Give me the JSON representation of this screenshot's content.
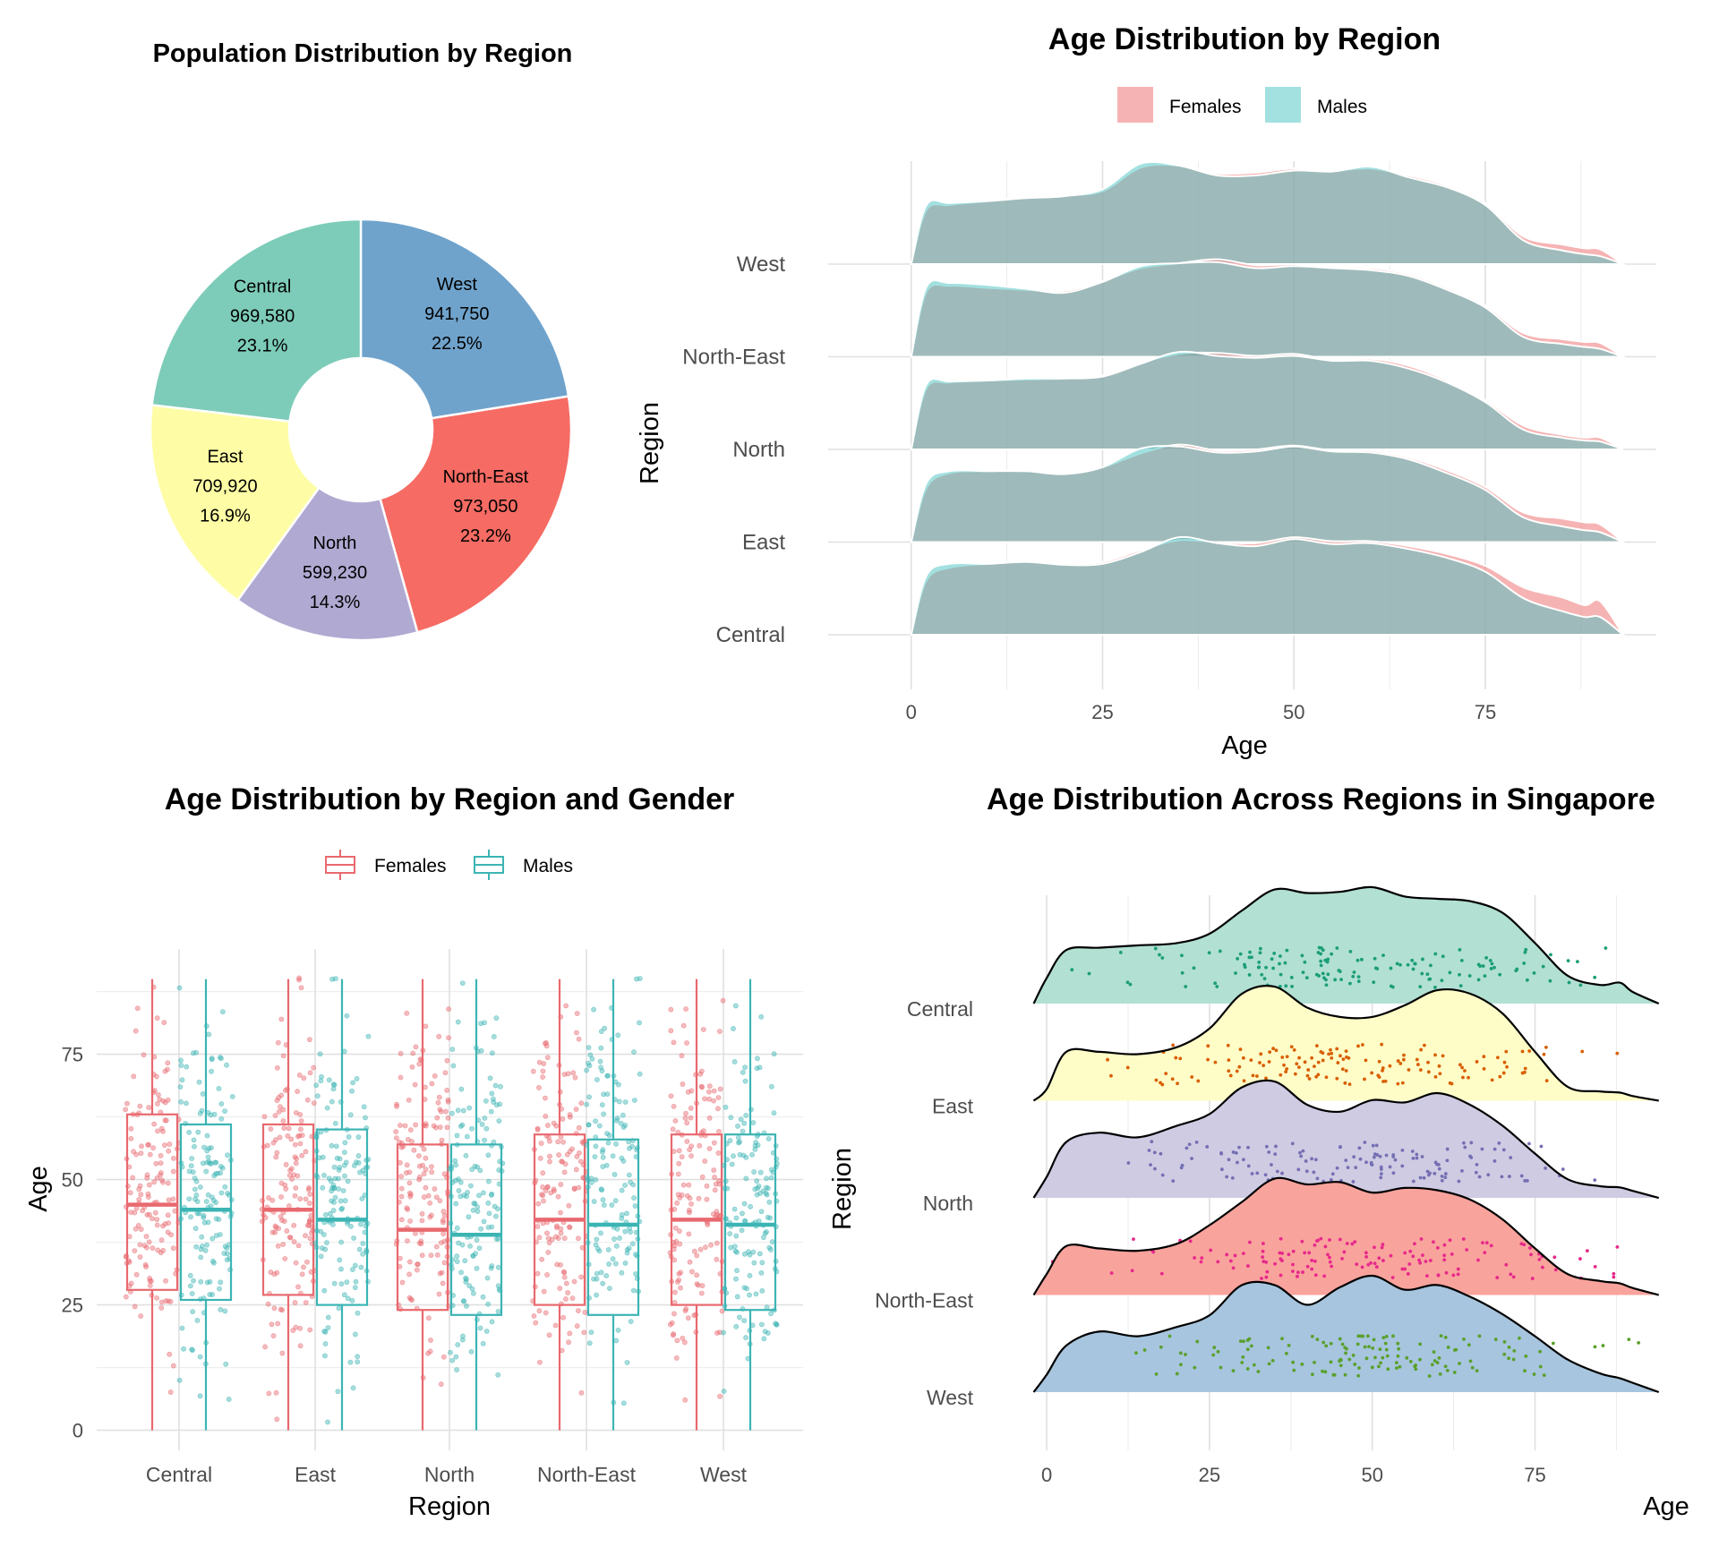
{
  "chart_data": [
    {
      "type": "pie",
      "title": "Population Distribution by Region",
      "slices": [
        {
          "label": "West",
          "value": 941750,
          "value_text": "941,750",
          "pct_text": "22.5%",
          "color": "#6fa3cc"
        },
        {
          "label": "North-East",
          "value": 973050,
          "value_text": "973,050",
          "pct_text": "23.2%",
          "color": "#f66b63"
        },
        {
          "label": "North",
          "value": 599230,
          "value_text": "599,230",
          "pct_text": "14.3%",
          "color": "#b0aad2"
        },
        {
          "label": "East",
          "value": 709920,
          "value_text": "709,920",
          "pct_text": "16.9%",
          "color": "#fefda5"
        },
        {
          "label": "Central",
          "value": 969580,
          "value_text": "969,580",
          "pct_text": "23.1%",
          "color": "#7dccb9"
        }
      ],
      "donut": true
    },
    {
      "type": "area",
      "title": "Age Distribution by Region",
      "subtype": "ridgeline-density",
      "xlabel": "Age",
      "ylabel": "Region",
      "x_ticks": [
        0,
        25,
        50,
        75
      ],
      "xlim": [
        -5,
        95
      ],
      "categories": [
        "Central",
        "East",
        "North",
        "North-East",
        "West"
      ],
      "legend": {
        "position": "top",
        "items": [
          {
            "name": "Females",
            "color": "#f08080"
          },
          {
            "name": "Males",
            "color": "#48c1c1"
          }
        ]
      },
      "grid": true,
      "x": [
        0,
        2,
        5,
        10,
        15,
        20,
        25,
        30,
        35,
        40,
        45,
        50,
        55,
        60,
        65,
        70,
        75,
        80,
        85,
        88,
        90,
        93
      ],
      "series": [
        {
          "category": "Central",
          "name": "Females",
          "values": [
            0,
            0.55,
            0.68,
            0.72,
            0.74,
            0.72,
            0.74,
            0.86,
            0.96,
            0.94,
            0.93,
            0.99,
            0.95,
            0.95,
            0.9,
            0.82,
            0.7,
            0.48,
            0.38,
            0.3,
            0.34,
            0
          ]
        },
        {
          "category": "Central",
          "name": "Males",
          "values": [
            0,
            0.6,
            0.72,
            0.72,
            0.74,
            0.71,
            0.72,
            0.84,
            0.99,
            0.93,
            0.9,
            0.97,
            0.92,
            0.93,
            0.87,
            0.78,
            0.64,
            0.37,
            0.24,
            0.18,
            0.18,
            0
          ]
        },
        {
          "category": "East",
          "name": "Females",
          "values": [
            0,
            0.55,
            0.7,
            0.72,
            0.72,
            0.7,
            0.76,
            0.9,
            0.99,
            0.93,
            0.94,
            0.98,
            0.93,
            0.93,
            0.86,
            0.73,
            0.56,
            0.3,
            0.24,
            0.2,
            0.18,
            0
          ]
        },
        {
          "category": "East",
          "name": "Males",
          "values": [
            0,
            0.6,
            0.72,
            0.72,
            0.72,
            0.69,
            0.76,
            0.95,
            0.97,
            0.91,
            0.92,
            0.97,
            0.92,
            0.91,
            0.84,
            0.7,
            0.53,
            0.25,
            0.16,
            0.12,
            0.1,
            0
          ]
        },
        {
          "category": "North",
          "name": "Females",
          "values": [
            0,
            0.62,
            0.68,
            0.7,
            0.71,
            0.72,
            0.75,
            0.88,
            0.97,
            0.98,
            0.95,
            0.97,
            0.91,
            0.92,
            0.85,
            0.7,
            0.5,
            0.24,
            0.15,
            0.12,
            0.12,
            0
          ]
        },
        {
          "category": "North",
          "name": "Males",
          "values": [
            0,
            0.66,
            0.69,
            0.7,
            0.72,
            0.72,
            0.74,
            0.87,
            0.99,
            0.95,
            0.93,
            0.95,
            0.9,
            0.9,
            0.82,
            0.68,
            0.48,
            0.2,
            0.12,
            0.09,
            0.08,
            0
          ]
        },
        {
          "category": "North-East",
          "name": "Females",
          "values": [
            0,
            0.66,
            0.72,
            0.7,
            0.68,
            0.67,
            0.77,
            0.9,
            0.95,
            0.99,
            0.93,
            0.94,
            0.91,
            0.9,
            0.84,
            0.7,
            0.52,
            0.24,
            0.18,
            0.15,
            0.14,
            0
          ]
        },
        {
          "category": "North-East",
          "name": "Males",
          "values": [
            0,
            0.71,
            0.75,
            0.73,
            0.69,
            0.65,
            0.76,
            0.92,
            0.95,
            0.96,
            0.9,
            0.92,
            0.9,
            0.88,
            0.82,
            0.68,
            0.5,
            0.2,
            0.13,
            0.1,
            0.08,
            0
          ]
        },
        {
          "category": "West",
          "name": "Females",
          "values": [
            0,
            0.55,
            0.6,
            0.64,
            0.68,
            0.7,
            0.74,
            0.98,
            1.0,
            0.92,
            0.93,
            0.97,
            0.95,
            0.97,
            0.9,
            0.8,
            0.62,
            0.28,
            0.2,
            0.16,
            0.15,
            0
          ]
        },
        {
          "category": "West",
          "name": "Males",
          "values": [
            0,
            0.6,
            0.62,
            0.64,
            0.67,
            0.69,
            0.76,
            1.02,
            1.0,
            0.9,
            0.9,
            0.95,
            0.94,
            0.99,
            0.88,
            0.78,
            0.6,
            0.24,
            0.14,
            0.1,
            0.08,
            0
          ]
        }
      ]
    },
    {
      "type": "box",
      "title": "Age Distribution by Region and Gender",
      "xlabel": "Region",
      "ylabel": "Age",
      "categories": [
        "Central",
        "East",
        "North",
        "North-East",
        "West"
      ],
      "y_ticks": [
        0,
        25,
        50,
        75
      ],
      "ylim": [
        -4,
        96
      ],
      "legend": {
        "position": "top",
        "items": [
          {
            "name": "Females",
            "color": "#e8696f"
          },
          {
            "name": "Males",
            "color": "#3cb4b4"
          }
        ]
      },
      "grid": true,
      "series": [
        {
          "name": "Females",
          "boxes": [
            {
              "q1": 28,
              "median": 45,
              "q3": 63,
              "min": 0,
              "max": 90
            },
            {
              "q1": 27,
              "median": 44,
              "q3": 61,
              "min": 0,
              "max": 90
            },
            {
              "q1": 24,
              "median": 40,
              "q3": 57,
              "min": 0,
              "max": 90
            },
            {
              "q1": 25,
              "median": 42,
              "q3": 59,
              "min": 0,
              "max": 90
            },
            {
              "q1": 25,
              "median": 42,
              "q3": 59,
              "min": 0,
              "max": 90
            }
          ]
        },
        {
          "name": "Males",
          "boxes": [
            {
              "q1": 26,
              "median": 44,
              "q3": 61,
              "min": 0,
              "max": 90
            },
            {
              "q1": 25,
              "median": 42,
              "q3": 60,
              "min": 0,
              "max": 90
            },
            {
              "q1": 23,
              "median": 39,
              "q3": 57,
              "min": 0,
              "max": 90
            },
            {
              "q1": 23,
              "median": 41,
              "q3": 58,
              "min": 0,
              "max": 90
            },
            {
              "q1": 24,
              "median": 41,
              "q3": 59,
              "min": 0,
              "max": 90
            }
          ]
        }
      ]
    },
    {
      "type": "area",
      "title": "Age Distribution Across Regions in Singapore",
      "subtype": "ridgeline-density-with-points",
      "xlabel": "Age",
      "ylabel": "Region",
      "x_ticks": [
        0,
        25,
        50,
        75
      ],
      "xlim": [
        -4,
        95
      ],
      "categories": [
        "West",
        "North-East",
        "North",
        "East",
        "Central"
      ],
      "grid": true,
      "x": [
        -2,
        0,
        3,
        8,
        14,
        20,
        25,
        30,
        35,
        40,
        45,
        50,
        55,
        60,
        65,
        70,
        75,
        80,
        85,
        88,
        90,
        94
      ],
      "series": [
        {
          "name": "West",
          "fill": "#a7c5de",
          "point_color": "#5aa02c",
          "values": [
            0,
            0.15,
            0.4,
            0.52,
            0.48,
            0.56,
            0.66,
            0.92,
            0.92,
            0.75,
            0.9,
            1.0,
            0.88,
            0.92,
            0.82,
            0.67,
            0.48,
            0.28,
            0.16,
            0.12,
            0.08,
            0
          ]
        },
        {
          "name": "North-East",
          "fill": "#f9a39d",
          "point_color": "#e7298a",
          "values": [
            0,
            0.18,
            0.42,
            0.4,
            0.38,
            0.44,
            0.6,
            0.8,
            1.0,
            0.95,
            0.97,
            0.88,
            0.92,
            0.9,
            0.82,
            0.65,
            0.4,
            0.18,
            0.12,
            0.1,
            0.06,
            0
          ]
        },
        {
          "name": "North",
          "fill": "#cfcbe3",
          "point_color": "#7570b3",
          "values": [
            0,
            0.18,
            0.48,
            0.56,
            0.52,
            0.62,
            0.72,
            0.95,
            1.0,
            0.8,
            0.74,
            0.84,
            0.82,
            0.9,
            0.8,
            0.62,
            0.38,
            0.16,
            0.1,
            0.09,
            0.06,
            0
          ]
        },
        {
          "name": "East",
          "fill": "#fefdc8",
          "point_color": "#d95f02",
          "values": [
            0,
            0.1,
            0.42,
            0.42,
            0.4,
            0.46,
            0.62,
            0.92,
            0.98,
            0.8,
            0.72,
            0.72,
            0.82,
            0.95,
            0.92,
            0.75,
            0.42,
            0.12,
            0.08,
            0.07,
            0.04,
            0
          ]
        },
        {
          "name": "Central",
          "fill": "#b2e0d3",
          "point_color": "#1b9e77",
          "values": [
            0,
            0.22,
            0.46,
            0.48,
            0.5,
            0.52,
            0.6,
            0.8,
            0.98,
            0.95,
            0.96,
            1.0,
            0.92,
            0.9,
            0.88,
            0.78,
            0.52,
            0.24,
            0.16,
            0.18,
            0.1,
            0
          ]
        }
      ]
    }
  ]
}
